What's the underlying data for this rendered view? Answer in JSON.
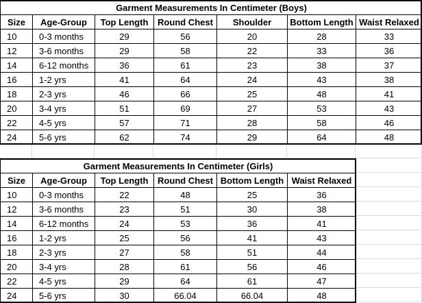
{
  "tables": [
    {
      "title": "Garment Measurements In Centimeter (Boys)",
      "headers": [
        "Size",
        "Age-Group",
        "Top Length",
        "Round Chest",
        "Shoulder",
        "Bottom Length",
        "Waist Relaxed"
      ],
      "rows": [
        [
          10,
          "0-3 months",
          29,
          56,
          20,
          28,
          33
        ],
        [
          12,
          "3-6 months",
          29,
          58,
          22,
          33,
          36
        ],
        [
          14,
          "6-12 months",
          36,
          61,
          23,
          38,
          37
        ],
        [
          16,
          "1-2 yrs",
          41,
          64,
          24,
          43,
          38
        ],
        [
          18,
          "2-3 yrs",
          46,
          66,
          25,
          48,
          41
        ],
        [
          20,
          "3-4 yrs",
          51,
          69,
          27,
          53,
          43
        ],
        [
          22,
          "4-5 yrs",
          57,
          71,
          28,
          58,
          46
        ],
        [
          24,
          "5-6 yrs",
          62,
          74,
          29,
          64,
          48
        ]
      ]
    },
    {
      "title": "Garment Measurements In Centimeter (Girls)",
      "headers": [
        "Size",
        "Age-Group",
        "Top Length",
        "Round Chest",
        "Bottom Length",
        "Waist Relaxed"
      ],
      "rows": [
        [
          10,
          "0-3 months",
          22,
          48,
          25,
          36
        ],
        [
          12,
          "3-6 months",
          23,
          51,
          30,
          38
        ],
        [
          14,
          "6-12 months",
          24,
          53,
          36,
          41
        ],
        [
          16,
          "1-2 yrs",
          25,
          56,
          41,
          43
        ],
        [
          18,
          "2-3 yrs",
          27,
          58,
          51,
          44
        ],
        [
          20,
          "3-4 yrs",
          28,
          61,
          56,
          46
        ],
        [
          22,
          "4-5 yrs",
          29,
          64,
          61,
          47
        ],
        [
          24,
          "5-6 yrs",
          30,
          66.04,
          66.04,
          48
        ]
      ]
    }
  ]
}
